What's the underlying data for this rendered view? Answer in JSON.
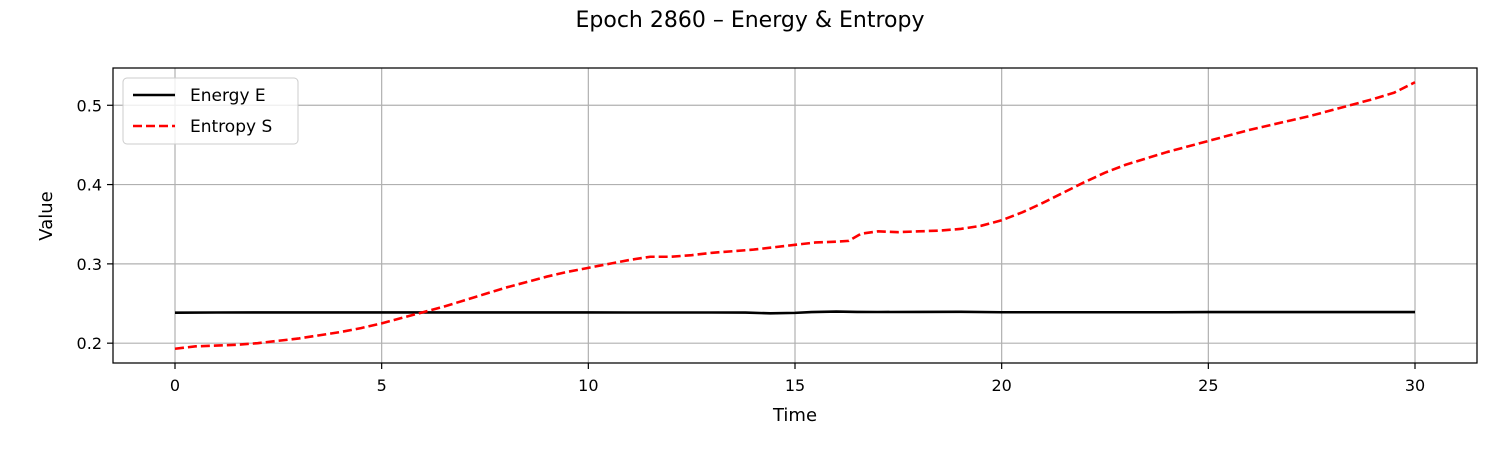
{
  "chart_data": {
    "type": "line",
    "title": "Epoch 2860 – Energy & Entropy",
    "xlabel": "Time",
    "ylabel": "Value",
    "xlim": [
      -1.5,
      31.5
    ],
    "ylim": [
      0.175,
      0.547
    ],
    "xticks": [
      0,
      5,
      10,
      15,
      20,
      25,
      30
    ],
    "yticks": [
      0.2,
      0.3,
      0.4,
      0.5
    ],
    "xtick_labels": [
      "0",
      "5",
      "10",
      "15",
      "20",
      "25",
      "30"
    ],
    "ytick_labels": [
      "0.2",
      "0.3",
      "0.4",
      "0.5"
    ],
    "grid": true,
    "legend_position": "upper-left",
    "series": [
      {
        "name": "Energy E",
        "color": "#000000",
        "style": "solid",
        "x": [
          0,
          1,
          2,
          3,
          4,
          5,
          6,
          7,
          8,
          9,
          10,
          11,
          12,
          13,
          13.8,
          14.4,
          15,
          15.4,
          16,
          16.5,
          17,
          18,
          19,
          20,
          21,
          22,
          23,
          24,
          25,
          26,
          27,
          28,
          29,
          30
        ],
        "y": [
          0.2385,
          0.2387,
          0.2388,
          0.2388,
          0.2388,
          0.2388,
          0.2388,
          0.2388,
          0.2388,
          0.2388,
          0.2388,
          0.2387,
          0.2387,
          0.2387,
          0.2386,
          0.2376,
          0.2382,
          0.2392,
          0.2398,
          0.2394,
          0.2393,
          0.2394,
          0.2395,
          0.239,
          0.239,
          0.239,
          0.239,
          0.239,
          0.2392,
          0.2392,
          0.2392,
          0.2392,
          0.2392,
          0.2392
        ]
      },
      {
        "name": "Entropy S",
        "color": "#ff0000",
        "style": "dashed",
        "x": [
          0,
          0.5,
          1,
          1.5,
          2,
          2.5,
          3,
          3.5,
          4,
          4.5,
          5,
          5.5,
          6,
          6.5,
          7,
          7.5,
          8,
          8.5,
          9,
          9.5,
          10,
          10.5,
          11,
          11.5,
          12,
          12.5,
          13,
          13.5,
          14,
          14.5,
          15,
          15.5,
          16,
          16.3,
          16.6,
          17,
          17.5,
          18,
          18.5,
          19,
          19.5,
          20,
          20.5,
          21,
          21.5,
          22,
          22.5,
          23,
          23.5,
          24,
          24.5,
          25,
          25.5,
          26,
          26.5,
          27,
          27.5,
          28,
          28.5,
          29,
          29.5,
          30
        ],
        "y": [
          0.193,
          0.196,
          0.197,
          0.198,
          0.2,
          0.203,
          0.206,
          0.21,
          0.214,
          0.219,
          0.225,
          0.232,
          0.239,
          0.246,
          0.254,
          0.262,
          0.27,
          0.277,
          0.284,
          0.29,
          0.295,
          0.3,
          0.305,
          0.309,
          0.309,
          0.311,
          0.314,
          0.316,
          0.318,
          0.321,
          0.324,
          0.327,
          0.328,
          0.329,
          0.338,
          0.341,
          0.34,
          0.341,
          0.342,
          0.344,
          0.348,
          0.355,
          0.365,
          0.377,
          0.39,
          0.403,
          0.415,
          0.425,
          0.433,
          0.441,
          0.448,
          0.455,
          0.462,
          0.469,
          0.475,
          0.481,
          0.487,
          0.494,
          0.501,
          0.508,
          0.516,
          0.529
        ]
      }
    ]
  }
}
